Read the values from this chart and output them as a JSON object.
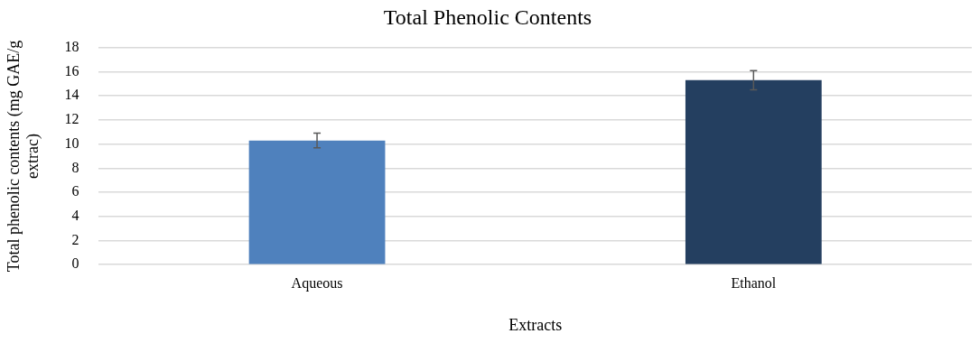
{
  "chart_data": {
    "type": "bar",
    "title": "Total Phenolic Contents",
    "xlabel": "Extracts",
    "ylabel": "Total phenolic contents (mg GAE/g extrac)",
    "categories": [
      "Aqueous",
      "Ethanol"
    ],
    "values": [
      10.3,
      15.3
    ],
    "colors": [
      "#4f81bd",
      "#243f60"
    ],
    "errors": [
      0.6,
      0.8
    ],
    "ylim": [
      0,
      18
    ],
    "yticks": [
      0,
      2,
      4,
      6,
      8,
      10,
      12,
      14,
      16,
      18
    ],
    "grid": "y",
    "legend": false
  }
}
